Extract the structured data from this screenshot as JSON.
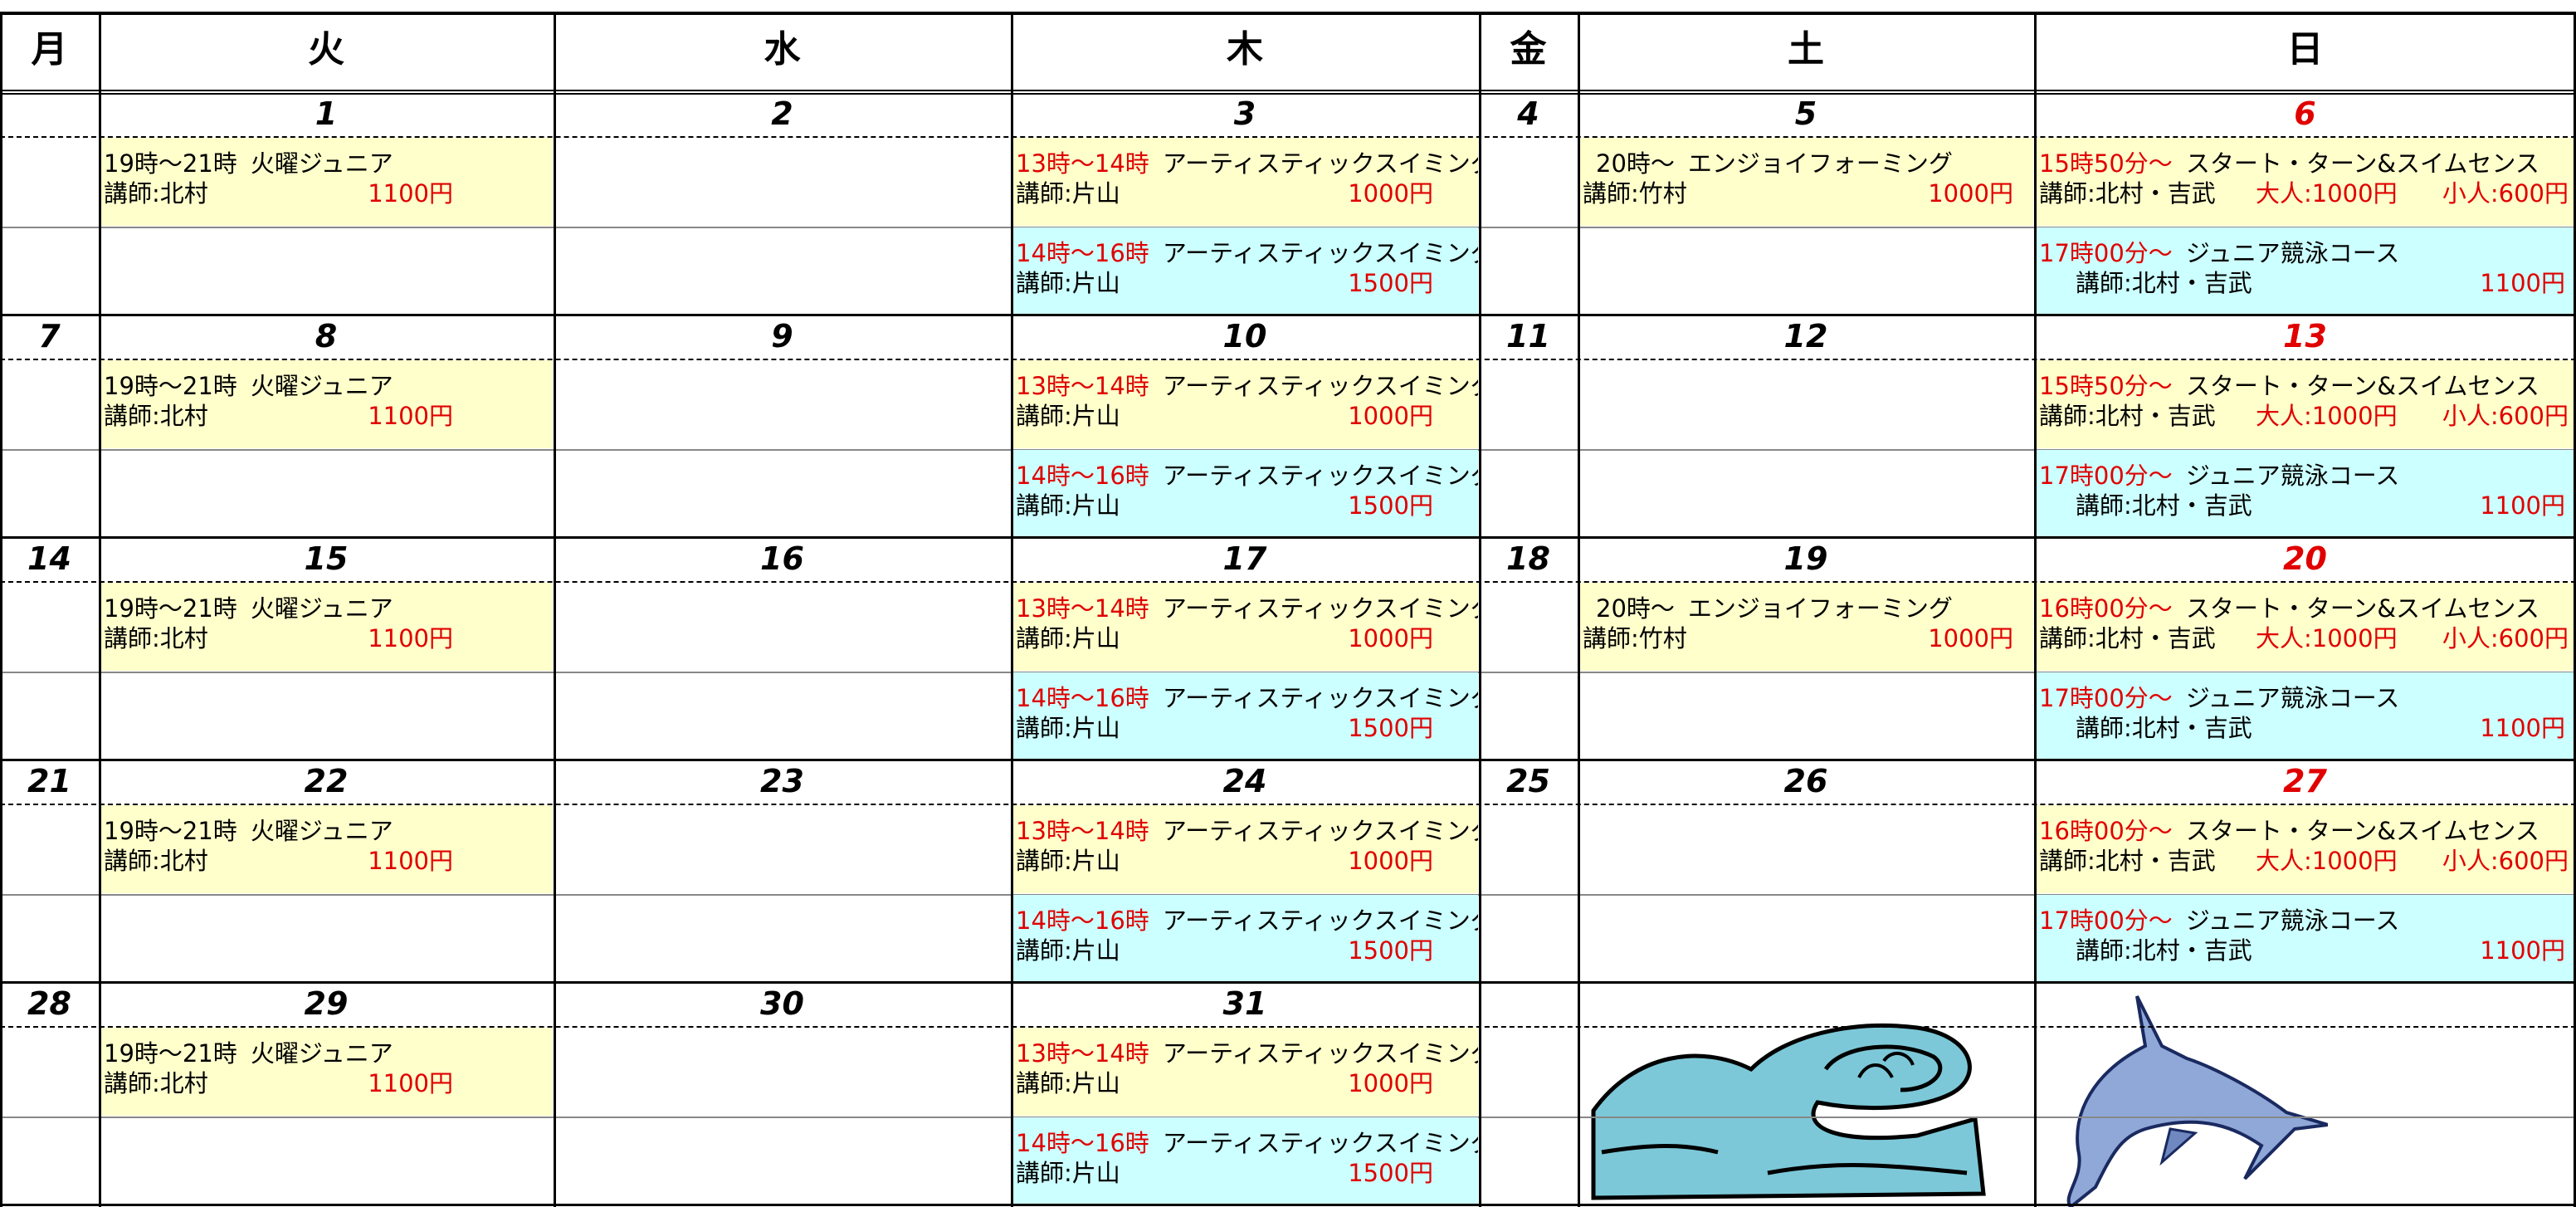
{
  "header": {
    "days": [
      "月",
      "火",
      "水",
      "木",
      "金",
      "土",
      "日"
    ]
  },
  "sunday_date_color": "#e00000",
  "weeks": [
    {
      "dates": [
        null,
        1,
        2,
        3,
        4,
        5,
        6
      ],
      "slots": [
        [
          null,
          {
            "time": "19時～21時",
            "title": "火曜ジュニア",
            "instructor": "講師:北村",
            "price": "1100円",
            "time_color": "#000000",
            "price_color": "#e00000",
            "bg": "#ffffcc"
          },
          null,
          {
            "time": "13時～14時",
            "title": "アーティスティックスイミング",
            "instructor": "講師:片山",
            "price": "1000円",
            "time_color": "#e00000",
            "price_color": "#e00000",
            "bg": "#ffffcc"
          },
          null,
          {
            "time": "20時～",
            "title": "エンジョイフォーミング",
            "instructor": "講師:竹村",
            "price": "1000円",
            "time_color": "#000000",
            "price_color": "#e00000",
            "bg": "#ffffcc"
          },
          {
            "time": "15時50分～",
            "title": "スタート・ターン&スイムセンス",
            "instructor": "講師:北村・吉武",
            "price": "大人:1000円",
            "price2": "小人:600円",
            "time_color": "#e00000",
            "price_color": "#e00000",
            "bg": "#ffffcc"
          }
        ],
        [
          null,
          null,
          null,
          {
            "time": "14時～16時",
            "title": "アーティスティックスイミング",
            "instructor": "講師:片山",
            "price": "1500円",
            "time_color": "#e00000",
            "price_color": "#e00000",
            "bg": "#ccffff"
          },
          null,
          null,
          {
            "time": "17時00分～",
            "title": "ジュニア競泳コース",
            "instructor": "講師:北村・吉武",
            "price": "1100円",
            "time_color": "#e00000",
            "price_color": "#e00000",
            "bg": "#ccffff"
          }
        ]
      ]
    },
    {
      "dates": [
        7,
        8,
        9,
        10,
        11,
        12,
        13
      ],
      "slots": [
        [
          null,
          {
            "time": "19時～21時",
            "title": "火曜ジュニア",
            "instructor": "講師:北村",
            "price": "1100円",
            "time_color": "#000000",
            "price_color": "#e00000",
            "bg": "#ffffcc"
          },
          null,
          {
            "time": "13時～14時",
            "title": "アーティスティックスイミング",
            "instructor": "講師:片山",
            "price": "1000円",
            "time_color": "#e00000",
            "price_color": "#e00000",
            "bg": "#ffffcc"
          },
          null,
          null,
          {
            "time": "15時50分～",
            "title": "スタート・ターン&スイムセンス",
            "instructor": "講師:北村・吉武",
            "price": "大人:1000円",
            "price2": "小人:600円",
            "time_color": "#e00000",
            "price_color": "#e00000",
            "bg": "#ffffcc"
          }
        ],
        [
          null,
          null,
          null,
          {
            "time": "14時～16時",
            "title": "アーティスティックスイミング",
            "instructor": "講師:片山",
            "price": "1500円",
            "time_color": "#e00000",
            "price_color": "#e00000",
            "bg": "#ccffff"
          },
          null,
          null,
          {
            "time": "17時00分～",
            "title": "ジュニア競泳コース",
            "instructor": "講師:北村・吉武",
            "price": "1100円",
            "time_color": "#e00000",
            "price_color": "#e00000",
            "bg": "#ccffff"
          }
        ]
      ]
    },
    {
      "dates": [
        14,
        15,
        16,
        17,
        18,
        19,
        20
      ],
      "slots": [
        [
          null,
          {
            "time": "19時～21時",
            "title": "火曜ジュニア",
            "instructor": "講師:北村",
            "price": "1100円",
            "time_color": "#000000",
            "price_color": "#e00000",
            "bg": "#ffffcc"
          },
          null,
          {
            "time": "13時～14時",
            "title": "アーティスティックスイミング",
            "instructor": "講師:片山",
            "price": "1000円",
            "time_color": "#e00000",
            "price_color": "#e00000",
            "bg": "#ffffcc"
          },
          null,
          {
            "time": "20時～",
            "title": "エンジョイフォーミング",
            "instructor": "講師:竹村",
            "price": "1000円",
            "time_color": "#000000",
            "price_color": "#e00000",
            "bg": "#ffffcc"
          },
          {
            "time": "16時00分～",
            "title": "スタート・ターン&スイムセンス",
            "instructor": "講師:北村・吉武",
            "price": "大人:1000円",
            "price2": "小人:600円",
            "time_color": "#e00000",
            "price_color": "#e00000",
            "bg": "#ffffcc"
          }
        ],
        [
          null,
          null,
          null,
          {
            "time": "14時～16時",
            "title": "アーティスティックスイミング",
            "instructor": "講師:片山",
            "price": "1500円",
            "time_color": "#e00000",
            "price_color": "#e00000",
            "bg": "#ccffff"
          },
          null,
          null,
          {
            "time": "17時00分～",
            "title": "ジュニア競泳コース",
            "instructor": "講師:北村・吉武",
            "price": "1100円",
            "time_color": "#e00000",
            "price_color": "#e00000",
            "bg": "#ccffff"
          }
        ]
      ]
    },
    {
      "dates": [
        21,
        22,
        23,
        24,
        25,
        26,
        27
      ],
      "slots": [
        [
          null,
          {
            "time": "19時～21時",
            "title": "火曜ジュニア",
            "instructor": "講師:北村",
            "price": "1100円",
            "time_color": "#000000",
            "price_color": "#e00000",
            "bg": "#ffffcc"
          },
          null,
          {
            "time": "13時～14時",
            "title": "アーティスティックスイミング",
            "instructor": "講師:片山",
            "price": "1000円",
            "time_color": "#e00000",
            "price_color": "#e00000",
            "bg": "#ffffcc"
          },
          null,
          null,
          {
            "time": "16時00分～",
            "title": "スタート・ターン&スイムセンス",
            "instructor": "講師:北村・吉武",
            "price": "大人:1000円",
            "price2": "小人:600円",
            "time_color": "#e00000",
            "price_color": "#e00000",
            "bg": "#ffffcc"
          }
        ],
        [
          null,
          null,
          null,
          {
            "time": "14時～16時",
            "title": "アーティスティックスイミング",
            "instructor": "講師:片山",
            "price": "1500円",
            "time_color": "#e00000",
            "price_color": "#e00000",
            "bg": "#ccffff"
          },
          null,
          null,
          {
            "time": "17時00分～",
            "title": "ジュニア競泳コース",
            "instructor": "講師:北村・吉武",
            "price": "1100円",
            "time_color": "#e00000",
            "price_color": "#e00000",
            "bg": "#ccffff"
          }
        ]
      ]
    },
    {
      "dates": [
        28,
        29,
        30,
        31,
        null,
        null,
        null
      ],
      "slots": [
        [
          null,
          {
            "time": "19時～21時",
            "title": "火曜ジュニア",
            "instructor": "講師:北村",
            "price": "1100円",
            "time_color": "#000000",
            "price_color": "#e00000",
            "bg": "#ffffcc"
          },
          null,
          {
            "time": "13時～14時",
            "title": "アーティスティックスイミング",
            "instructor": "講師:片山",
            "price": "1000円",
            "time_color": "#e00000",
            "price_color": "#e00000",
            "bg": "#ffffcc"
          },
          null,
          null,
          null
        ],
        [
          null,
          null,
          null,
          {
            "time": "14時～16時",
            "title": "アーティスティックスイミング",
            "instructor": "講師:片山",
            "price": "1500円",
            "time_color": "#e00000",
            "price_color": "#e00000",
            "bg": "#ccffff"
          },
          null,
          null,
          null
        ]
      ]
    }
  ]
}
